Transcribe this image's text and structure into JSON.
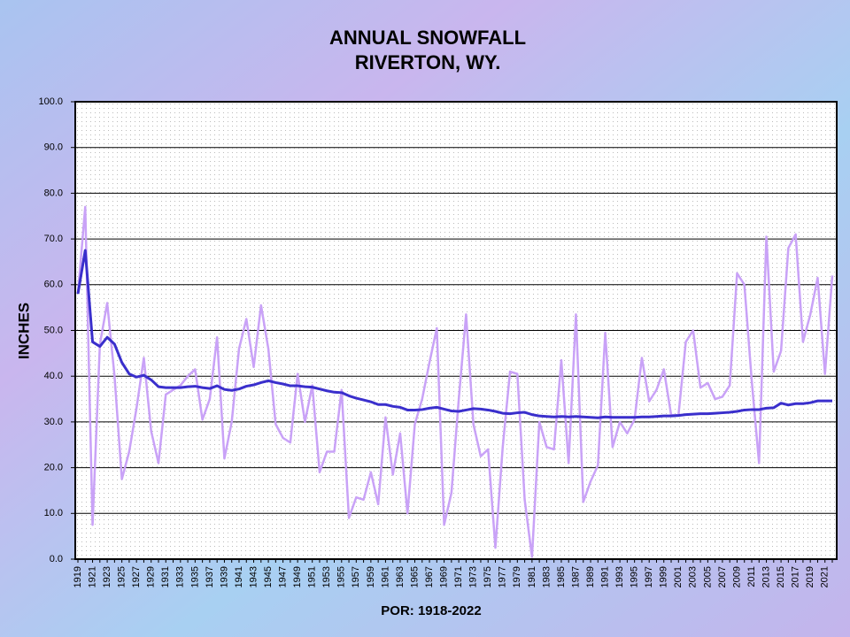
{
  "chart_data": {
    "type": "line",
    "title": "ANNUAL SNOWFALL",
    "subtitle": "RIVERTON, WY.",
    "y_label": "INCHES",
    "x_label": "POR: 1918-2022",
    "categories": [
      "1919",
      null,
      "1921",
      null,
      "1923",
      null,
      "1925",
      null,
      "1927",
      null,
      "1929",
      null,
      "1931",
      null,
      "1933",
      null,
      "1935",
      null,
      "1937",
      null,
      "1939",
      null,
      "1941",
      null,
      "1943",
      null,
      "1945",
      null,
      "1947",
      null,
      "1949",
      null,
      "1951",
      null,
      "1953",
      null,
      "1955",
      null,
      "1957",
      null,
      "1959",
      null,
      "1961",
      null,
      "1963",
      null,
      "1965",
      null,
      "1967",
      null,
      "1969",
      null,
      "1971",
      null,
      "1973",
      null,
      "1975",
      null,
      "1977",
      null,
      "1979",
      null,
      "1981",
      null,
      "1983",
      null,
      "1985",
      null,
      "1987",
      null,
      "1989",
      null,
      "1991",
      null,
      "1993",
      null,
      "1995",
      null,
      "1997",
      null,
      "1999",
      null,
      "2001",
      null,
      "2003",
      null,
      "2005",
      null,
      "2007",
      null,
      "2009",
      null,
      "2011",
      null,
      "2013",
      null,
      "2015",
      null,
      "2017",
      null,
      "2019",
      null,
      "2021",
      null
    ],
    "series": [
      {
        "color": "#c9a2f7",
        "values": [
          58,
          77,
          7.5,
          47,
          56,
          40,
          17.5,
          23.5,
          33,
          44,
          28,
          21,
          36,
          37,
          38,
          40,
          41.5,
          30.5,
          35,
          48.5,
          22,
          30,
          46,
          52.5,
          42,
          55.5,
          46,
          29.5,
          26.5,
          25.5,
          40.5,
          30,
          38,
          19,
          23.5,
          23.5,
          37,
          9,
          13.5,
          13,
          19,
          12,
          31,
          18.5,
          27.5,
          10,
          29.5,
          35,
          43,
          50.5,
          7.5,
          14.5,
          35,
          53.5,
          29.5,
          22.5,
          24,
          2.5,
          24.5,
          41,
          40.5,
          13,
          0.5,
          30,
          24.5,
          24,
          43.5,
          21,
          53.5,
          12.5,
          17,
          20.5,
          49.5,
          24.5,
          30,
          27.5,
          30.5,
          44,
          34.5,
          37,
          41.5,
          31.5,
          31.5,
          47.5,
          50,
          37.5,
          38.5,
          35,
          35.5,
          38,
          62.5,
          60,
          39,
          21,
          70.5,
          41,
          45.5,
          68,
          71,
          47.5,
          53.5,
          61.5,
          40.5,
          62
        ]
      },
      {
        "color": "#3a2fcc",
        "values": [
          58,
          67.5,
          47.5,
          46.5,
          48.5,
          47,
          43,
          40.5,
          39.8,
          40.2,
          39.2,
          37.7,
          37.5,
          37.5,
          37.5,
          37.7,
          37.8,
          37.5,
          37.3,
          37.9,
          37.1,
          36.9,
          37.2,
          37.8,
          38.1,
          38.6,
          39,
          38.6,
          38.3,
          37.9,
          37.9,
          37.7,
          37.6,
          37.2,
          36.8,
          36.5,
          36.4,
          35.7,
          35.2,
          34.8,
          34.4,
          33.8,
          33.8,
          33.4,
          33.2,
          32.6,
          32.6,
          32.7,
          33,
          33.2,
          32.8,
          32.4,
          32.3,
          32.6,
          32.9,
          32.8,
          32.6,
          32.3,
          31.9,
          31.8,
          32,
          32.1,
          31.6,
          31.3,
          31.2,
          31.1,
          31.2,
          31.1,
          31.2,
          31.1,
          31,
          30.9,
          31.1,
          31,
          31,
          31,
          31,
          31.1,
          31.1,
          31.2,
          31.3,
          31.3,
          31.4,
          31.6,
          31.7,
          31.8,
          31.8,
          31.9,
          32,
          32.1,
          32.3,
          32.6,
          32.7,
          32.7,
          33,
          33.1,
          34.1,
          33.7,
          34,
          34,
          34.2,
          34.6,
          34.6,
          34.6
        ]
      }
    ],
    "ylim": [
      0,
      100
    ],
    "yticks": [
      {
        "value": 0,
        "label": "0.0"
      },
      {
        "value": 10,
        "label": "10.0"
      },
      {
        "value": 20,
        "label": "20.0"
      },
      {
        "value": 30,
        "label": "30.0"
      },
      {
        "value": 40,
        "label": "40.0"
      },
      {
        "value": 50,
        "label": "50.0"
      },
      {
        "value": 60,
        "label": "60.0"
      },
      {
        "value": 70,
        "label": "70.0"
      },
      {
        "value": 80,
        "label": "80.0"
      },
      {
        "value": 90,
        "label": "90.0"
      },
      {
        "value": 100,
        "label": "100.0"
      }
    ],
    "grid": true
  }
}
